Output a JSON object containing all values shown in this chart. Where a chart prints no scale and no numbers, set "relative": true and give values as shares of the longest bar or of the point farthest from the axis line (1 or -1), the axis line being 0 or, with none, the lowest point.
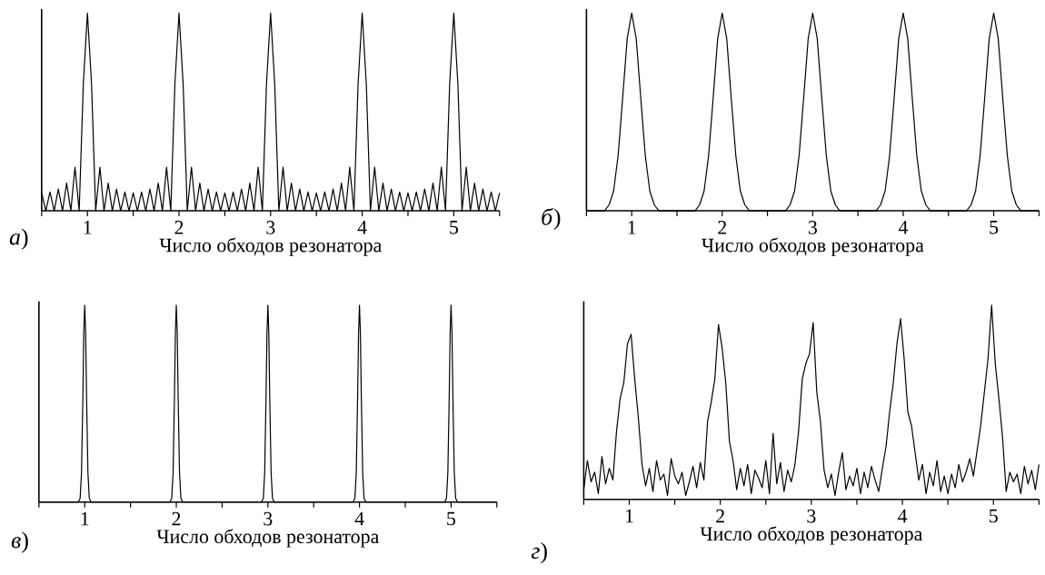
{
  "chart_data": [
    {
      "type": "line",
      "relative": true,
      "xlabel": "Число обходов резонатора",
      "annotations": [
        "*а*)"
      ],
      "color": "#000000",
      "xlim": [
        0.5,
        5.5
      ],
      "xticks": [
        {
          "value": 0.5,
          "label": null
        },
        1,
        {
          "value": 1.5,
          "label": null
        },
        2,
        {
          "value": 2.5,
          "label": null
        },
        3,
        {
          "value": 3.5,
          "label": null
        },
        4,
        {
          "value": 4.5,
          "label": null
        },
        5,
        {
          "value": 5.5,
          "label": null
        }
      ],
      "x": [
        0.5,
        0.546,
        0.591,
        0.637,
        0.682,
        0.728,
        0.773,
        0.819,
        0.864,
        0.91,
        0.955,
        1,
        1.045,
        1.09,
        1.136,
        1.181,
        1.227,
        1.272,
        1.318,
        1.363,
        1.409,
        1.454,
        1.5,
        1.546,
        1.591,
        1.637,
        1.682,
        1.728,
        1.773,
        1.819,
        1.864,
        1.91,
        1.955,
        2,
        2.045,
        2.09,
        2.136,
        2.181,
        2.227,
        2.272,
        2.318,
        2.363,
        2.409,
        2.454,
        2.5,
        2.546,
        2.591,
        2.637,
        2.682,
        2.728,
        2.773,
        2.819,
        2.864,
        2.91,
        2.955,
        3,
        3.045,
        3.09,
        3.136,
        3.181,
        3.227,
        3.272,
        3.318,
        3.363,
        3.409,
        3.454,
        3.5,
        3.546,
        3.591,
        3.637,
        3.682,
        3.728,
        3.773,
        3.819,
        3.864,
        3.91,
        3.955,
        4,
        4.045,
        4.09,
        4.136,
        4.181,
        4.227,
        4.272,
        4.318,
        4.363,
        4.409,
        4.454,
        4.5,
        4.546,
        4.591,
        4.637,
        4.682,
        4.728,
        4.773,
        4.819,
        4.864,
        4.91,
        4.955,
        5,
        5.045,
        5.09,
        5.136,
        5.181,
        5.227,
        5.272,
        5.318,
        5.363,
        5.409,
        5.454,
        5.5
      ],
      "values": [
        0.09,
        0,
        0.095,
        0,
        0.11,
        0,
        0.14,
        0,
        0.22,
        0,
        0.64,
        1,
        0.64,
        0,
        0.22,
        0,
        0.14,
        0,
        0.11,
        0,
        0.095,
        0,
        0.09,
        0,
        0.095,
        0,
        0.11,
        0,
        0.14,
        0,
        0.22,
        0,
        0.64,
        1,
        0.64,
        0,
        0.22,
        0,
        0.14,
        0,
        0.11,
        0,
        0.095,
        0,
        0.09,
        0,
        0.095,
        0,
        0.11,
        0,
        0.14,
        0,
        0.22,
        0,
        0.64,
        1,
        0.64,
        0,
        0.22,
        0,
        0.14,
        0,
        0.11,
        0,
        0.095,
        0,
        0.09,
        0,
        0.095,
        0,
        0.11,
        0,
        0.14,
        0,
        0.22,
        0,
        0.64,
        1,
        0.64,
        0,
        0.22,
        0,
        0.14,
        0,
        0.11,
        0,
        0.095,
        0,
        0.09,
        0,
        0.095,
        0,
        0.11,
        0,
        0.14,
        0,
        0.22,
        0,
        0.64,
        1,
        0.64,
        0,
        0.22,
        0,
        0.14,
        0,
        0.11,
        0,
        0.095,
        0,
        0.09
      ]
    },
    {
      "type": "line",
      "relative": true,
      "xlabel": "Число обходов резонатора",
      "annotations": [
        "*б*)"
      ],
      "color": "#000000",
      "xlim": [
        0.5,
        5.5
      ],
      "xticks": [
        {
          "value": 0.5,
          "label": null
        },
        1,
        {
          "value": 1.5,
          "label": null
        },
        2,
        {
          "value": 2.5,
          "label": null
        },
        3,
        {
          "value": 3.5,
          "label": null
        },
        4,
        {
          "value": 4.5,
          "label": null
        },
        5,
        {
          "value": 5.5,
          "label": null
        }
      ],
      "x": [
        0.5,
        0.7,
        0.75,
        0.8,
        0.85,
        0.9,
        0.95,
        1,
        1.05,
        1.1,
        1.15,
        1.2,
        1.25,
        1.3,
        1.7,
        1.75,
        1.8,
        1.85,
        1.9,
        1.95,
        2,
        2.05,
        2.1,
        2.15,
        2.2,
        2.25,
        2.3,
        2.7,
        2.75,
        2.8,
        2.85,
        2.9,
        2.95,
        3,
        3.05,
        3.1,
        3.15,
        3.2,
        3.25,
        3.3,
        3.7,
        3.75,
        3.8,
        3.85,
        3.9,
        3.95,
        4,
        4.05,
        4.1,
        4.15,
        4.2,
        4.25,
        4.3,
        4.7,
        4.75,
        4.8,
        4.85,
        4.9,
        4.95,
        5,
        5.05,
        5.1,
        5.15,
        5.2,
        5.25,
        5.3,
        5.5
      ],
      "values": [
        0,
        0,
        0.03,
        0.1,
        0.28,
        0.57,
        0.87,
        1,
        0.87,
        0.57,
        0.28,
        0.1,
        0.03,
        0,
        0,
        0.03,
        0.1,
        0.28,
        0.57,
        0.87,
        1,
        0.87,
        0.57,
        0.28,
        0.1,
        0.03,
        0,
        0,
        0.03,
        0.1,
        0.28,
        0.57,
        0.87,
        1,
        0.87,
        0.57,
        0.28,
        0.1,
        0.03,
        0,
        0,
        0.03,
        0.1,
        0.28,
        0.57,
        0.87,
        1,
        0.87,
        0.57,
        0.28,
        0.1,
        0.03,
        0,
        0,
        0.03,
        0.1,
        0.28,
        0.57,
        0.87,
        1,
        0.87,
        0.57,
        0.28,
        0.1,
        0.03,
        0,
        0
      ]
    },
    {
      "type": "line",
      "relative": true,
      "xlabel": "Число обходов резонатора",
      "annotations": [
        "*в*)"
      ],
      "color": "#000000",
      "xlim": [
        0.5,
        5.5
      ],
      "xticks": [
        {
          "value": 0.5,
          "label": null
        },
        1,
        {
          "value": 1.5,
          "label": null
        },
        2,
        {
          "value": 2.5,
          "label": null
        },
        3,
        {
          "value": 3.5,
          "label": null
        },
        4,
        {
          "value": 4.5,
          "label": null
        },
        5,
        {
          "value": 5.5,
          "label": null
        }
      ],
      "x": [
        0.5,
        0.93,
        0.95,
        0.965,
        0.98,
        0.99,
        1,
        1.01,
        1.02,
        1.035,
        1.05,
        1.07,
        1.93,
        1.95,
        1.965,
        1.98,
        1.99,
        2,
        2.01,
        2.02,
        2.035,
        2.05,
        2.07,
        2.93,
        2.95,
        2.965,
        2.98,
        2.99,
        3,
        3.01,
        3.02,
        3.035,
        3.05,
        3.07,
        3.93,
        3.95,
        3.965,
        3.98,
        3.99,
        4,
        4.01,
        4.02,
        4.035,
        4.05,
        4.07,
        4.93,
        4.95,
        4.965,
        4.98,
        4.99,
        5,
        5.01,
        5.02,
        5.035,
        5.05,
        5.07,
        5.5
      ],
      "values": [
        0,
        0,
        0.02,
        0.15,
        0.54,
        0.86,
        1,
        0.86,
        0.54,
        0.15,
        0.02,
        0,
        0,
        0.02,
        0.15,
        0.54,
        0.86,
        1,
        0.86,
        0.54,
        0.15,
        0.02,
        0,
        0,
        0.02,
        0.15,
        0.54,
        0.86,
        1,
        0.86,
        0.54,
        0.15,
        0.02,
        0,
        0,
        0.02,
        0.15,
        0.54,
        0.86,
        1,
        0.86,
        0.54,
        0.15,
        0.02,
        0,
        0,
        0.02,
        0.15,
        0.54,
        0.86,
        1,
        0.86,
        0.54,
        0.15,
        0.02,
        0,
        0
      ]
    },
    {
      "type": "line",
      "relative": true,
      "xlabel": "Число обходов резонатора",
      "annotations": [
        "*г*)"
      ],
      "color": "#000000",
      "xlim": [
        0.5,
        5.5
      ],
      "xticks": [
        {
          "value": 0.5,
          "label": null
        },
        1,
        {
          "value": 1.5,
          "label": null
        },
        2,
        {
          "value": 2.5,
          "label": null
        },
        3,
        {
          "value": 3.5,
          "label": null
        },
        4,
        {
          "value": 4.5,
          "label": null
        },
        5,
        {
          "value": 5.5,
          "label": null
        }
      ],
      "x": [
        0.5,
        0.54,
        0.58,
        0.62,
        0.66,
        0.7,
        0.74,
        0.78,
        0.82,
        0.86,
        0.9,
        0.94,
        0.98,
        1.02,
        1.06,
        1.1,
        1.14,
        1.18,
        1.22,
        1.26,
        1.3,
        1.34,
        1.38,
        1.42,
        1.46,
        1.5,
        1.54,
        1.58,
        1.62,
        1.66,
        1.7,
        1.74,
        1.78,
        1.82,
        1.86,
        1.9,
        1.94,
        1.98,
        2.02,
        2.06,
        2.1,
        2.14,
        2.18,
        2.22,
        2.26,
        2.3,
        2.34,
        2.38,
        2.42,
        2.46,
        2.5,
        2.54,
        2.58,
        2.62,
        2.66,
        2.7,
        2.74,
        2.78,
        2.82,
        2.86,
        2.9,
        2.94,
        2.98,
        3.02,
        3.06,
        3.1,
        3.14,
        3.18,
        3.22,
        3.26,
        3.3,
        3.34,
        3.38,
        3.42,
        3.46,
        3.5,
        3.54,
        3.58,
        3.62,
        3.66,
        3.7,
        3.74,
        3.78,
        3.82,
        3.86,
        3.9,
        3.94,
        3.98,
        4.02,
        4.06,
        4.1,
        4.14,
        4.18,
        4.22,
        4.26,
        4.3,
        4.34,
        4.38,
        4.42,
        4.46,
        4.5,
        4.54,
        4.58,
        4.62,
        4.66,
        4.7,
        4.74,
        4.78,
        4.82,
        4.86,
        4.9,
        4.94,
        4.98,
        5.02,
        5.06,
        5.1,
        5.14,
        5.18,
        5.22,
        5.26,
        5.3,
        5.34,
        5.38,
        5.42,
        5.46,
        5.5
      ],
      "values": [
        0.05,
        0.2,
        0.09,
        0.14,
        0.03,
        0.22,
        0.08,
        0.16,
        0.1,
        0.35,
        0.52,
        0.6,
        0.8,
        0.85,
        0.62,
        0.42,
        0.18,
        0.07,
        0.16,
        0.04,
        0.2,
        0.1,
        0.13,
        0.02,
        0.21,
        0.12,
        0.08,
        0.14,
        0.02,
        0.09,
        0.17,
        0.06,
        0.19,
        0.1,
        0.4,
        0.5,
        0.62,
        0.9,
        0.78,
        0.6,
        0.3,
        0.2,
        0.05,
        0.16,
        0.07,
        0.18,
        0.03,
        0.15,
        0.11,
        0.06,
        0.2,
        0.03,
        0.34,
        0.08,
        0.19,
        0.04,
        0.15,
        0.09,
        0.18,
        0.35,
        0.62,
        0.7,
        0.75,
        0.91,
        0.55,
        0.4,
        0.15,
        0.06,
        0.13,
        0.02,
        0.14,
        0.24,
        0.05,
        0.12,
        0.07,
        0.16,
        0.03,
        0.14,
        0.06,
        0.17,
        0.1,
        0.04,
        0.16,
        0.27,
        0.45,
        0.6,
        0.8,
        0.93,
        0.72,
        0.45,
        0.38,
        0.24,
        0.1,
        0.18,
        0.03,
        0.14,
        0.07,
        0.2,
        0.04,
        0.12,
        0.03,
        0.13,
        0.06,
        0.18,
        0.09,
        0.14,
        0.21,
        0.12,
        0.25,
        0.38,
        0.55,
        0.72,
        1,
        0.7,
        0.52,
        0.32,
        0.04,
        0.14,
        0.09,
        0.13,
        0.03,
        0.17,
        0.08,
        0.15,
        0.05,
        0.18
      ]
    }
  ]
}
